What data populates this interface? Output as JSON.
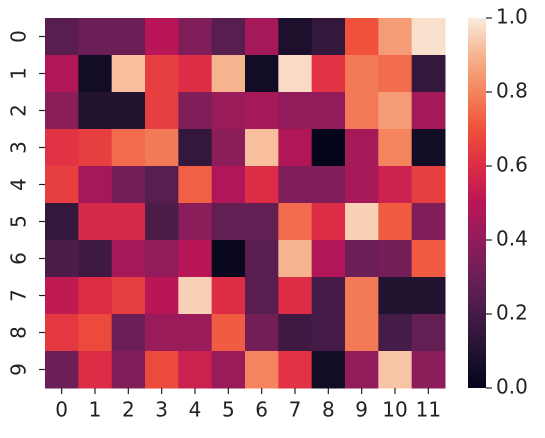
{
  "chart_data": {
    "type": "heatmap",
    "columns": [
      0,
      1,
      2,
      3,
      4,
      5,
      6,
      7,
      8,
      9,
      10,
      11
    ],
    "rows": [
      0,
      1,
      2,
      3,
      4,
      5,
      6,
      7,
      8,
      9
    ],
    "values": [
      [
        0.25,
        0.3,
        0.3,
        0.5,
        0.35,
        0.25,
        0.45,
        0.08,
        0.15,
        0.7,
        0.85,
        0.98
      ],
      [
        0.48,
        0.05,
        0.92,
        0.65,
        0.6,
        0.9,
        0.05,
        0.97,
        0.62,
        0.78,
        0.75,
        0.15
      ],
      [
        0.38,
        0.1,
        0.1,
        0.65,
        0.35,
        0.42,
        0.45,
        0.4,
        0.4,
        0.78,
        0.85,
        0.45
      ],
      [
        0.62,
        0.65,
        0.75,
        0.78,
        0.15,
        0.38,
        0.92,
        0.48,
        0.0,
        0.45,
        0.8,
        0.05
      ],
      [
        0.65,
        0.45,
        0.32,
        0.25,
        0.73,
        0.48,
        0.6,
        0.35,
        0.35,
        0.45,
        0.55,
        0.65
      ],
      [
        0.15,
        0.58,
        0.58,
        0.22,
        0.38,
        0.28,
        0.28,
        0.75,
        0.6,
        0.95,
        0.72,
        0.35
      ],
      [
        0.22,
        0.18,
        0.45,
        0.4,
        0.5,
        0.02,
        0.25,
        0.9,
        0.48,
        0.3,
        0.32,
        0.72
      ],
      [
        0.52,
        0.6,
        0.65,
        0.5,
        0.95,
        0.6,
        0.25,
        0.6,
        0.2,
        0.78,
        0.1,
        0.1
      ],
      [
        0.63,
        0.68,
        0.3,
        0.42,
        0.42,
        0.72,
        0.32,
        0.18,
        0.2,
        0.78,
        0.2,
        0.28
      ],
      [
        0.3,
        0.6,
        0.35,
        0.68,
        0.55,
        0.42,
        0.8,
        0.62,
        0.05,
        0.4,
        0.93,
        0.38
      ]
    ],
    "zlim": [
      0,
      1
    ],
    "zticks": [
      {
        "value": 0,
        "label": "0.0"
      },
      0.2,
      0.4,
      0.6,
      0.8,
      {
        "value": 1,
        "label": "1.0"
      }
    ],
    "colorscale": [
      "#03051a",
      "#221331",
      "#451c47",
      "#6b1f56",
      "#921c5b",
      "#b91657",
      "#dd2c45",
      "#f0513b",
      "#f4845d",
      "#f6b48e",
      "#faebdd"
    ]
  }
}
